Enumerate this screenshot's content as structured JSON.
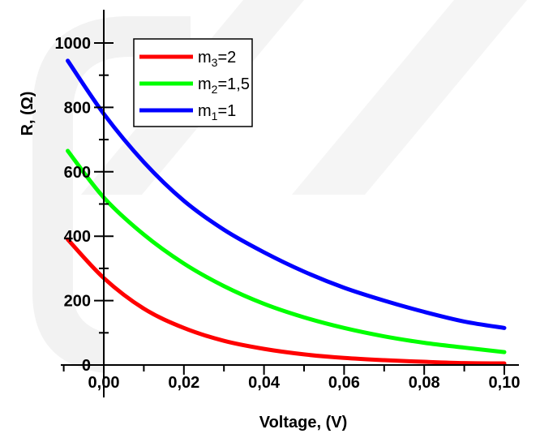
{
  "chart_data": {
    "type": "line",
    "title": "",
    "xlabel": "Voltage, (V)",
    "ylabel": "R, (Ω)",
    "xlim": [
      -0.009,
      0.103
    ],
    "ylim": [
      -5,
      1110
    ],
    "x_ticks": [
      "0,00",
      "0,02",
      "0,04",
      "0,06",
      "0,08",
      "0,10"
    ],
    "x_tick_values": [
      0,
      0.02,
      0.04,
      0.06,
      0.08,
      0.1
    ],
    "y_ticks": [
      "0",
      "200",
      "400",
      "600",
      "800",
      "1000"
    ],
    "y_tick_values": [
      0,
      200,
      400,
      600,
      800,
      1000
    ],
    "legend_position": "top-left",
    "grid": false,
    "series": [
      {
        "name": "m3=2",
        "label_main": "m",
        "label_sub": "3",
        "label_rest": "=2",
        "color": "#ff0000",
        "x": [
          -0.009,
          0.0,
          0.01,
          0.02,
          0.03,
          0.04,
          0.05,
          0.06,
          0.07,
          0.08,
          0.09,
          0.1
        ],
        "y": [
          390,
          270,
          175,
          115,
          75,
          50,
          33,
          22,
          15,
          10,
          6,
          5
        ]
      },
      {
        "name": "m2=1,5",
        "label_main": "m",
        "label_sub": "2",
        "label_rest": "=1,5",
        "color": "#00ff00",
        "x": [
          -0.009,
          0.0,
          0.01,
          0.02,
          0.03,
          0.04,
          0.05,
          0.06,
          0.07,
          0.08,
          0.09,
          0.1
        ],
        "y": [
          665,
          520,
          405,
          315,
          245,
          190,
          148,
          115,
          89,
          69,
          54,
          40
        ]
      },
      {
        "name": "m1=1",
        "label_main": "m",
        "label_sub": "1",
        "label_rest": "=1",
        "color": "#0000ff",
        "x": [
          -0.009,
          0.0,
          0.01,
          0.02,
          0.03,
          0.04,
          0.05,
          0.06,
          0.07,
          0.08,
          0.09,
          0.1
        ],
        "y": [
          945,
          780,
          630,
          510,
          420,
          350,
          290,
          240,
          200,
          165,
          135,
          115
        ]
      }
    ]
  }
}
